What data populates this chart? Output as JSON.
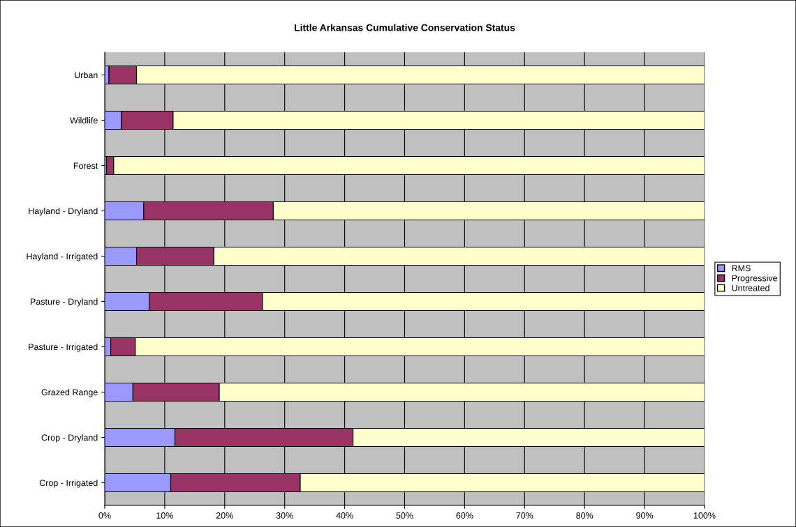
{
  "chart_data": {
    "type": "bar",
    "title": "Little Arkansas Cumulative Conservation Status",
    "orientation": "horizontal",
    "stacked": true,
    "categories": [
      "Urban",
      "Wildlife",
      "Forest",
      "Hayland - Dryland",
      "Hayland - Irrigated",
      "Pasture - Dryland",
      "Pasture - Irrigated",
      "Grazed Range",
      "Crop - Dryland",
      "Crop - Irrigated"
    ],
    "series": [
      {
        "name": "RMS",
        "color": "#9999ff",
        "values": [
          0.7,
          2.8,
          0.3,
          6.5,
          5.3,
          7.4,
          1.0,
          4.7,
          11.7,
          11.0
        ]
      },
      {
        "name": "Progressive",
        "color": "#993366",
        "values": [
          4.6,
          8.6,
          1.2,
          21.6,
          12.9,
          18.9,
          4.1,
          14.4,
          29.7,
          21.6
        ]
      },
      {
        "name": "Untreated",
        "color": "#ffffcc",
        "values": [
          94.7,
          88.6,
          98.5,
          71.9,
          81.8,
          73.7,
          94.9,
          80.9,
          58.6,
          67.4
        ]
      }
    ],
    "xlim": [
      0,
      100
    ],
    "xticks": [
      {
        "value": 0,
        "label": "0%"
      },
      {
        "value": 10,
        "label": "10%"
      },
      {
        "value": 20,
        "label": "20%"
      },
      {
        "value": 30,
        "label": "30%"
      },
      {
        "value": 40,
        "label": "40%"
      },
      {
        "value": 50,
        "label": "50%"
      },
      {
        "value": 60,
        "label": "60%"
      },
      {
        "value": 70,
        "label": "70%"
      },
      {
        "value": 80,
        "label": "80%"
      },
      {
        "value": 90,
        "label": "90%"
      },
      {
        "value": 100,
        "label": "100%"
      }
    ],
    "grid": "x",
    "legend": "right"
  }
}
